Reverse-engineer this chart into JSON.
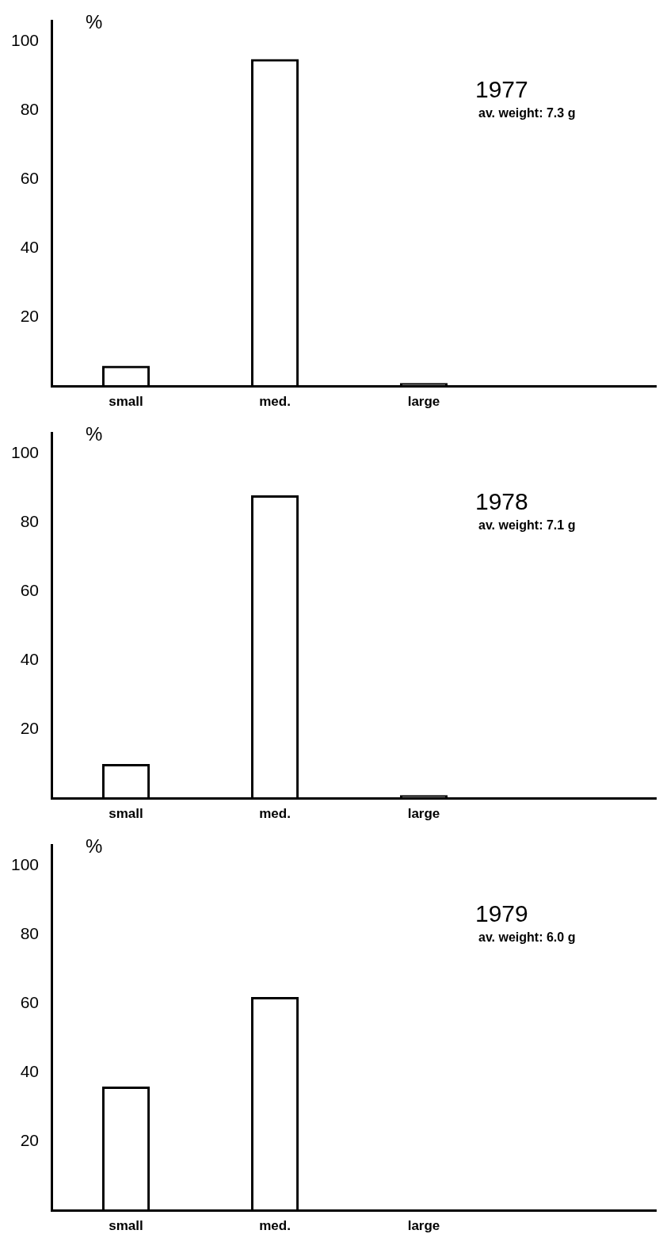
{
  "chart_data": [
    {
      "type": "bar",
      "title": "1977",
      "subtitle": "av. weight: 7.3 g",
      "ylabel": "%",
      "categories": [
        "small",
        "med.",
        "large"
      ],
      "values": [
        6,
        95,
        1
      ],
      "color": "#000000",
      "ylim": [
        0,
        106
      ],
      "yticks": [
        20,
        40,
        60,
        80,
        100
      ],
      "grid": false,
      "legend": false
    },
    {
      "type": "bar",
      "title": "1978",
      "subtitle": "av. weight: 7.1 g",
      "ylabel": "%",
      "categories": [
        "small",
        "med.",
        "large"
      ],
      "values": [
        10,
        88,
        1
      ],
      "color": "#000000",
      "ylim": [
        0,
        106
      ],
      "yticks": [
        20,
        40,
        60,
        80,
        100
      ],
      "grid": false,
      "legend": false
    },
    {
      "type": "bar",
      "title": "1979",
      "subtitle": "av. weight: 6.0 g",
      "ylabel": "%",
      "categories": [
        "small",
        "med.",
        "large"
      ],
      "values": [
        36,
        62,
        0
      ],
      "color": "#000000",
      "ylim": [
        0,
        106
      ],
      "yticks": [
        20,
        40,
        60,
        80,
        100
      ],
      "grid": false,
      "legend": false
    }
  ]
}
